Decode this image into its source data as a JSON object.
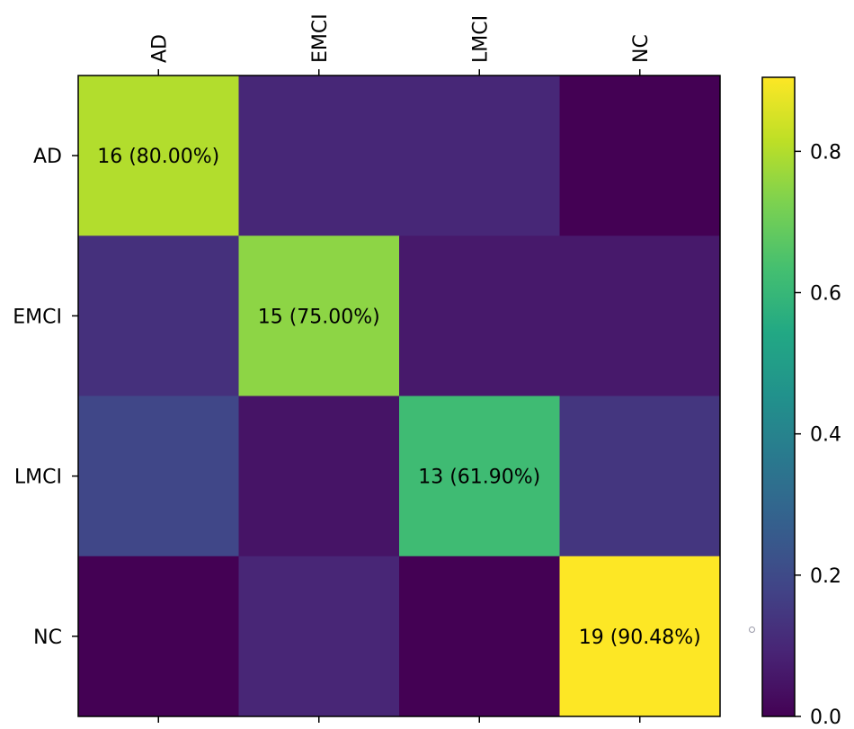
{
  "chart_data": {
    "type": "heatmap",
    "title": "",
    "xlabel": "",
    "ylabel": "",
    "x_categories": [
      "AD",
      "EMCI",
      "LMCI",
      "NC"
    ],
    "y_categories": [
      "AD",
      "EMCI",
      "LMCI",
      "NC"
    ],
    "matrix": [
      [
        0.8,
        0.1,
        0.1,
        0.0
      ],
      [
        0.125,
        0.75,
        0.0625,
        0.0625
      ],
      [
        0.19,
        0.05,
        0.619,
        0.14
      ],
      [
        0.0,
        0.095,
        0.0,
        0.9048
      ]
    ],
    "annotations": [
      {
        "row": 0,
        "col": 0,
        "text": "16 (80.00%)"
      },
      {
        "row": 1,
        "col": 1,
        "text": "15 (75.00%)"
      },
      {
        "row": 2,
        "col": 2,
        "text": "13 (61.90%)"
      },
      {
        "row": 3,
        "col": 3,
        "text": "19 (90.48%)"
      }
    ],
    "colormap": "viridis",
    "colorbar": {
      "range": [
        0.0,
        0.9048
      ],
      "ticks": [
        0.0,
        0.2,
        0.4,
        0.6,
        0.8
      ],
      "tick_labels": [
        "0.0",
        "0.2",
        "0.4",
        "0.6",
        "0.8"
      ]
    },
    "x_tick_position": "top",
    "x_tick_rotation": "vertical"
  },
  "colors": {
    "background": "#ffffff",
    "axis": "#000000",
    "marker": "#9a9aa8"
  }
}
